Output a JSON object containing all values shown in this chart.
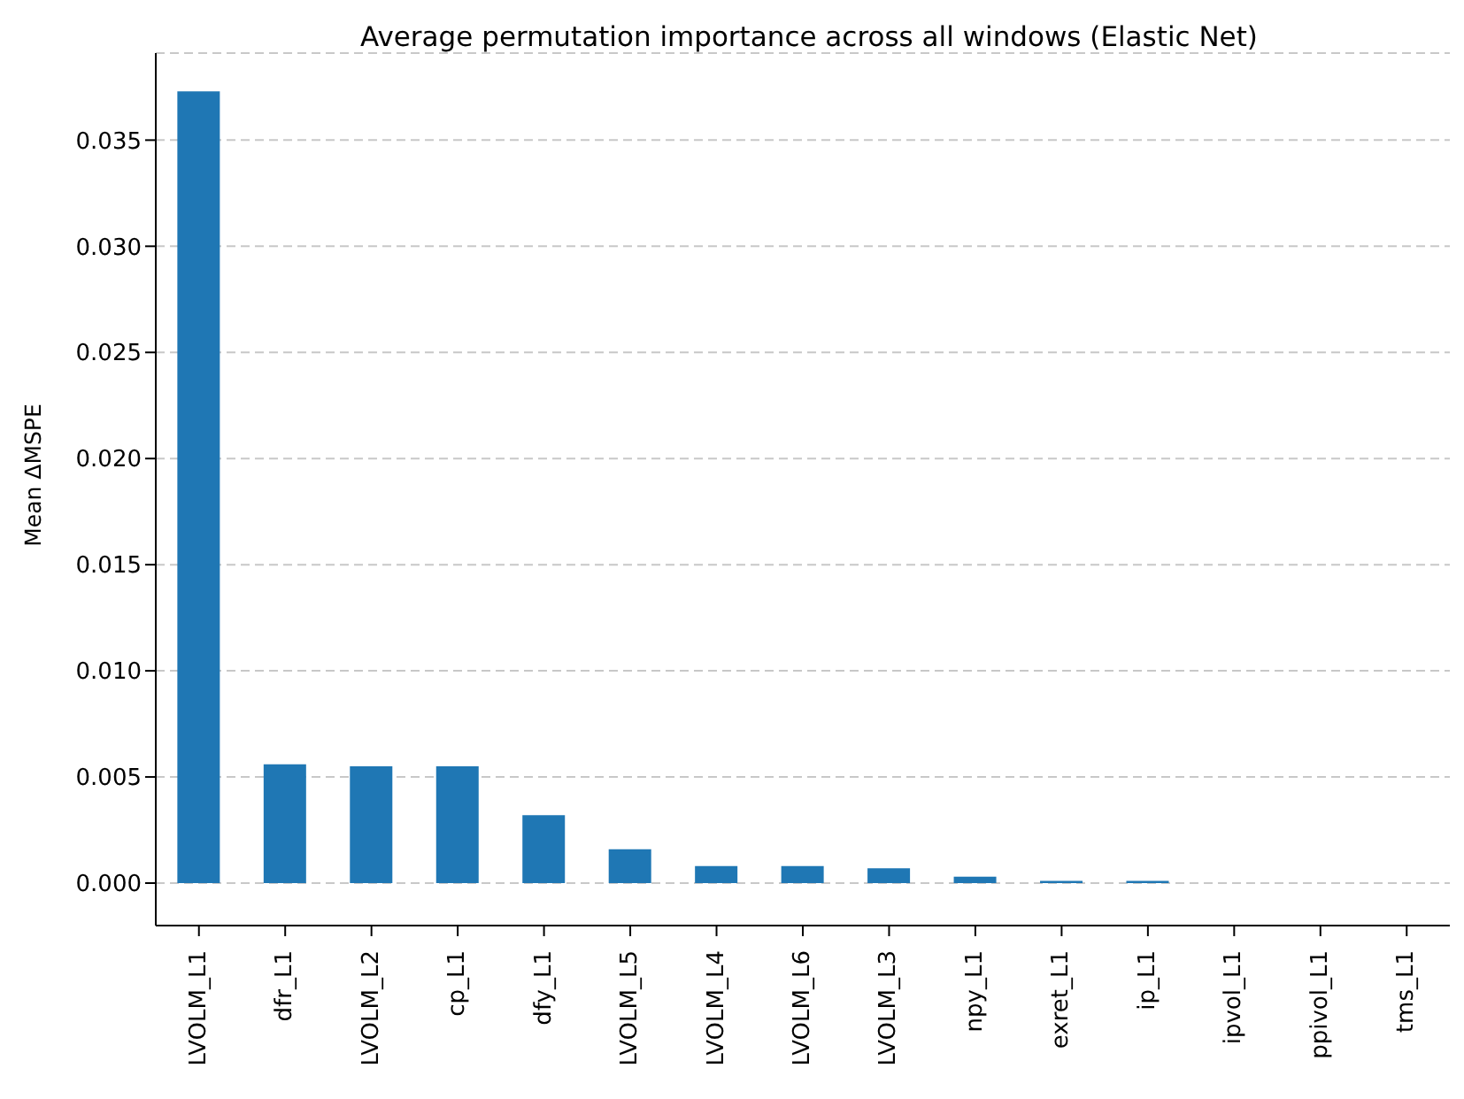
{
  "chart_data": {
    "type": "bar",
    "title": "Average permutation importance across all windows (Elastic Net)",
    "ylabel": "Mean ΔMSPE",
    "categories": [
      "LVOLM_L1",
      "dfr_L1",
      "LVOLM_L2",
      "cp_L1",
      "dfy_L1",
      "LVOLM_L5",
      "LVOLM_L4",
      "LVOLM_L6",
      "LVOLM_L3",
      "npy_L1",
      "exret_L1",
      "ip_L1",
      "ipvol_L1",
      "ppivol_L1",
      "tms_L1"
    ],
    "values": [
      0.0373,
      0.0056,
      0.0055,
      0.0055,
      0.0032,
      0.0016,
      0.0008,
      0.0008,
      0.0007,
      0.0003,
      0.0001,
      0.0001,
      0,
      0,
      0
    ],
    "color": "#1f77b4",
    "ylim": [
      -0.002,
      0.0391
    ],
    "yticks": [
      {
        "value": 0,
        "label": "0.000"
      },
      0.005,
      {
        "value": 0.01,
        "label": "0.010"
      },
      0.015,
      {
        "value": 0.02,
        "label": "0.020"
      },
      0.025,
      {
        "value": 0.03,
        "label": "0.030"
      },
      0.035
    ],
    "grid": "y"
  }
}
